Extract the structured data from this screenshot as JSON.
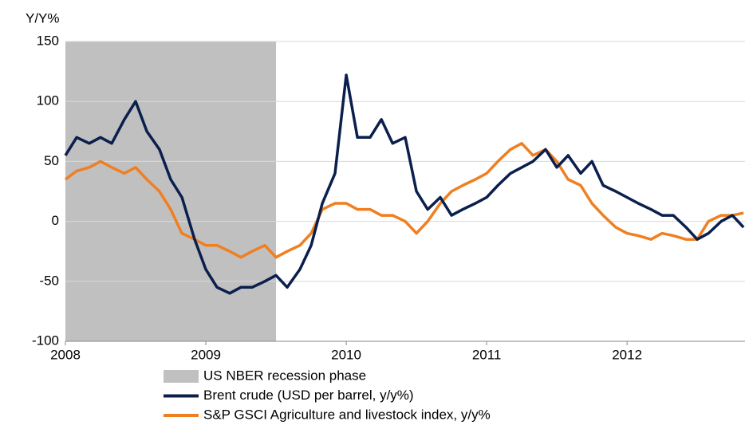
{
  "chart_data": {
    "type": "line",
    "y_label": "Y/Y%",
    "xlim": [
      2008,
      2012.84
    ],
    "xticks": [
      2008,
      2009,
      2010,
      2011,
      2012
    ],
    "ylim": [
      -100,
      150
    ],
    "yticks": [
      -100,
      -50,
      0,
      50,
      100,
      150
    ],
    "grid": true,
    "legend": "bottom",
    "recession": {
      "name": "US NBER recession phase",
      "start": 2008,
      "end": 2009.5,
      "color": "#c0c0c0"
    },
    "x": [
      2008.0,
      2008.08,
      2008.17,
      2008.25,
      2008.33,
      2008.42,
      2008.5,
      2008.58,
      2008.67,
      2008.75,
      2008.83,
      2008.92,
      2009.0,
      2009.08,
      2009.17,
      2009.25,
      2009.33,
      2009.42,
      2009.5,
      2009.58,
      2009.67,
      2009.75,
      2009.83,
      2009.92,
      2010.0,
      2010.08,
      2010.17,
      2010.25,
      2010.33,
      2010.42,
      2010.5,
      2010.58,
      2010.67,
      2010.75,
      2010.83,
      2010.92,
      2011.0,
      2011.08,
      2011.17,
      2011.25,
      2011.33,
      2011.42,
      2011.5,
      2011.58,
      2011.67,
      2011.75,
      2011.83,
      2011.92,
      2012.0,
      2012.08,
      2012.17,
      2012.25,
      2012.33,
      2012.42,
      2012.5,
      2012.58,
      2012.67,
      2012.75,
      2012.83
    ],
    "series": [
      {
        "name": "Brent crude (USD per barrel, y/y%)",
        "color": "#0b1f4d",
        "values": [
          55,
          70,
          65,
          70,
          65,
          85,
          100,
          75,
          60,
          35,
          20,
          -15,
          -40,
          -55,
          -60,
          -55,
          -55,
          -50,
          -45,
          -55,
          -40,
          -20,
          15,
          40,
          122,
          70,
          70,
          85,
          65,
          70,
          25,
          10,
          20,
          5,
          10,
          15,
          20,
          30,
          40,
          45,
          50,
          60,
          45,
          55,
          40,
          50,
          30,
          25,
          20,
          15,
          10,
          5,
          5,
          -5,
          -15,
          -10,
          0,
          5,
          -5
        ]
      },
      {
        "name": "S&P GSCI Agriculture and livestock index, y/y%",
        "color": "#f07f21",
        "values": [
          35,
          42,
          45,
          50,
          45,
          40,
          45,
          35,
          25,
          10,
          -10,
          -15,
          -20,
          -20,
          -25,
          -30,
          -25,
          -20,
          -30,
          -25,
          -20,
          -10,
          10,
          15,
          15,
          10,
          10,
          5,
          5,
          0,
          -10,
          0,
          15,
          25,
          30,
          35,
          40,
          50,
          60,
          65,
          55,
          60,
          50,
          35,
          30,
          15,
          5,
          -5,
          -10,
          -12,
          -15,
          -10,
          -12,
          -15,
          -15,
          0,
          5,
          5,
          7
        ]
      }
    ]
  }
}
